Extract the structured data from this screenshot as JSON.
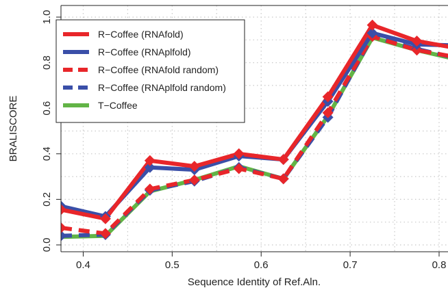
{
  "chart_data": {
    "type": "line",
    "title": "",
    "xlabel": "Sequence Identity of Ref.Aln.",
    "ylabel": "BRALISCORE",
    "xlim": [
      0.375,
      0.81
    ],
    "ylim": [
      0.0,
      1.0
    ],
    "x_ticks": [
      "0.4",
      "0.5",
      "0.6",
      "0.7",
      "0.8"
    ],
    "y_ticks": [
      "0.0",
      "0.2",
      "0.4",
      "0.6",
      "0.8",
      "1.0"
    ],
    "grid": true,
    "legend_position": "top-left",
    "x": [
      0.375,
      0.425,
      0.475,
      0.525,
      0.575,
      0.625,
      0.675,
      0.725,
      0.775,
      0.825
    ],
    "series": [
      {
        "name": "R−Coffee (RNAfold)",
        "color": "#e8262a",
        "dash": "solid",
        "marker": "diamond",
        "values": [
          0.155,
          0.115,
          0.37,
          0.345,
          0.4,
          0.375,
          0.65,
          0.965,
          0.895,
          0.86
        ]
      },
      {
        "name": "R−Coffee (RNAplfold)",
        "color": "#3a4fa8",
        "dash": "solid",
        "marker": "diamond",
        "values": [
          0.17,
          0.125,
          0.34,
          0.33,
          0.39,
          0.375,
          0.63,
          0.93,
          0.88,
          0.875
        ]
      },
      {
        "name": "R−Coffee (RNAfold random)",
        "color": "#e8262a",
        "dash": "dashed",
        "marker": "diamond",
        "values": [
          0.075,
          0.05,
          0.245,
          0.285,
          0.335,
          0.29,
          0.58,
          0.915,
          0.855,
          0.82
        ]
      },
      {
        "name": "R−Coffee (RNAplfold random)",
        "color": "#3a4fa8",
        "dash": "dashed",
        "marker": "diamond",
        "values": [
          0.04,
          0.045,
          0.24,
          0.28,
          0.34,
          0.29,
          0.56,
          0.915,
          0.86,
          0.815
        ]
      },
      {
        "name": "T−Coffee",
        "color": "#62b446",
        "dash": "solid",
        "marker": "none",
        "values": [
          0.035,
          0.04,
          0.235,
          0.285,
          0.345,
          0.29,
          0.565,
          0.91,
          0.855,
          0.81
        ]
      }
    ]
  }
}
